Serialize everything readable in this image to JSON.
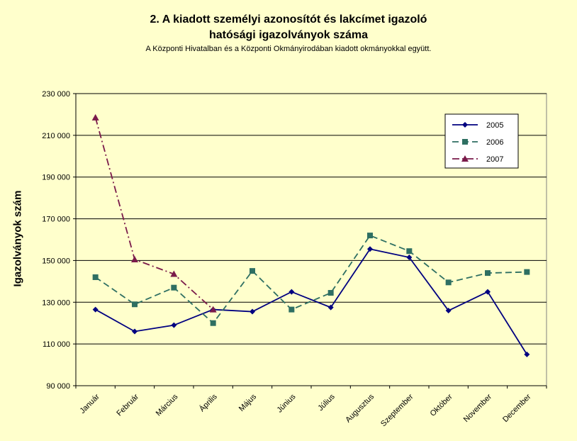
{
  "chart_data": {
    "type": "line",
    "title_line1": "2. A kiadott személyi azonosítót és lakcímet igazoló",
    "title_line2": "hatósági igazolványok száma",
    "subtitle": "A Központi Hivatalban és a Központi Okmányirodában kiadott okmányokkal együtt.",
    "ylabel": "Igazolványok szám",
    "xlabel": "",
    "ylim": [
      90000,
      230000
    ],
    "yticks": [
      90000,
      110000,
      130000,
      150000,
      170000,
      190000,
      210000,
      230000
    ],
    "ytick_labels": [
      "90 000",
      "110 000",
      "130 000",
      "150 000",
      "170 000",
      "190 000",
      "210 000",
      "230 000"
    ],
    "categories": [
      "Január",
      "Február",
      "Március",
      "Április",
      "Május",
      "Június",
      "Július",
      "Augusztus",
      "Szeptember",
      "Október",
      "November",
      "December"
    ],
    "grid": true,
    "legend_position": "top-right",
    "series": [
      {
        "name": "2005",
        "color": "#000080",
        "marker": "diamond",
        "dash": "solid",
        "values": [
          126500,
          116000,
          119000,
          126500,
          125500,
          135000,
          127500,
          155500,
          151500,
          126000,
          135000,
          105000
        ]
      },
      {
        "name": "2006",
        "color": "#2E6F62",
        "marker": "square",
        "dash": "dash",
        "values": [
          142000,
          129000,
          137000,
          120000,
          145000,
          126500,
          134500,
          162000,
          154500,
          139500,
          144000,
          144500
        ]
      },
      {
        "name": "2007",
        "color": "#7A1A4A",
        "marker": "triangle",
        "dash": "dashdot",
        "values": [
          218500,
          150500,
          143500,
          126500,
          null,
          null,
          null,
          null,
          null,
          null,
          null,
          null
        ]
      }
    ]
  }
}
